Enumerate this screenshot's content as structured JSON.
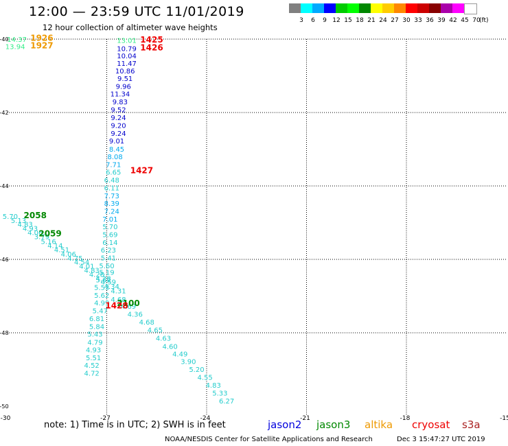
{
  "title": "12:00 — 23:59 UTC 11/01/2019",
  "subtitle": "12 hour collection of altimeter wave heights",
  "scale": {
    "colors": [
      "#808080",
      "#00ffff",
      "#00aaff",
      "#0000ff",
      "#00cc00",
      "#00ff00",
      "#008800",
      "#ffff00",
      "#ffcc00",
      "#ff8800",
      "#ff0000",
      "#cc0000",
      "#880000",
      "#aa00aa",
      "#ff00ff",
      "#ffffff"
    ],
    "labels": [
      "3",
      "6",
      "9",
      "12",
      "15",
      "18",
      "21",
      "24",
      "27",
      "30",
      "33",
      "36",
      "39",
      "42",
      "45",
      "70"
    ],
    "unit": "(ft)"
  },
  "axes": {
    "x_labels": [
      "-30",
      "-27",
      "-24",
      "-21",
      "-18",
      "-15"
    ],
    "y_labels": [
      "-40",
      "-42",
      "-44",
      "-46",
      "-48",
      "-50"
    ]
  },
  "wave_labels": [
    {
      "lon": -29.7,
      "lat": -40.0,
      "t": "14.37",
      "c": "#33ee88"
    },
    {
      "lon": -29.75,
      "lat": -40.2,
      "t": "13.94",
      "c": "#33ee88"
    },
    {
      "lon": -26.4,
      "lat": -40.03,
      "t": "13.01",
      "c": "#33ee88"
    },
    {
      "lon": -26.4,
      "lat": -40.25,
      "t": "10.79",
      "c": "#0000cc"
    },
    {
      "lon": -26.4,
      "lat": -40.45,
      "t": "10.04",
      "c": "#0000cc"
    },
    {
      "lon": -26.4,
      "lat": -40.65,
      "t": "11.47",
      "c": "#0000cc"
    },
    {
      "lon": -26.45,
      "lat": -40.86,
      "t": "10.86",
      "c": "#0000cc"
    },
    {
      "lon": -26.45,
      "lat": -41.07,
      "t": "9.51",
      "c": "#0000cc"
    },
    {
      "lon": -26.5,
      "lat": -41.28,
      "t": "9.96",
      "c": "#0000cc"
    },
    {
      "lon": -26.6,
      "lat": -41.49,
      "t": "11.34",
      "c": "#0000cc"
    },
    {
      "lon": -26.6,
      "lat": -41.7,
      "t": "9.83",
      "c": "#0000cc"
    },
    {
      "lon": -26.65,
      "lat": -41.92,
      "t": "9.52",
      "c": "#0000cc"
    },
    {
      "lon": -26.65,
      "lat": -42.13,
      "t": "9.24",
      "c": "#0000cc"
    },
    {
      "lon": -26.65,
      "lat": -42.35,
      "t": "9.20",
      "c": "#0000cc"
    },
    {
      "lon": -26.65,
      "lat": -42.56,
      "t": "9.24",
      "c": "#0000cc"
    },
    {
      "lon": -26.7,
      "lat": -42.77,
      "t": "9.01",
      "c": "#0000cc"
    },
    {
      "lon": -26.7,
      "lat": -42.99,
      "t": "8.45",
      "c": "#00aaee"
    },
    {
      "lon": -26.75,
      "lat": -43.2,
      "t": "8.08",
      "c": "#00aaee"
    },
    {
      "lon": -26.8,
      "lat": -43.41,
      "t": "7.71",
      "c": "#00aaee"
    },
    {
      "lon": -26.8,
      "lat": -43.62,
      "t": "6.65",
      "c": "#22cccc"
    },
    {
      "lon": -26.85,
      "lat": -43.83,
      "t": "6.48",
      "c": "#22cccc"
    },
    {
      "lon": -26.85,
      "lat": -44.05,
      "t": "6.11",
      "c": "#22cccc"
    },
    {
      "lon": -26.85,
      "lat": -44.26,
      "t": "7.73",
      "c": "#00aaee"
    },
    {
      "lon": -26.85,
      "lat": -44.47,
      "t": "8.39",
      "c": "#00aaee"
    },
    {
      "lon": -26.85,
      "lat": -44.68,
      "t": "7.24",
      "c": "#00aaee"
    },
    {
      "lon": -26.9,
      "lat": -44.9,
      "t": "7.01",
      "c": "#00aaee"
    },
    {
      "lon": -26.9,
      "lat": -45.1,
      "t": "5.70",
      "c": "#22cccc"
    },
    {
      "lon": -26.9,
      "lat": -45.32,
      "t": "5.69",
      "c": "#22cccc"
    },
    {
      "lon": -26.9,
      "lat": -45.53,
      "t": "6.14",
      "c": "#22cccc"
    },
    {
      "lon": -26.95,
      "lat": -45.74,
      "t": "6.23",
      "c": "#22cccc"
    },
    {
      "lon": -26.95,
      "lat": -45.95,
      "t": "5.41",
      "c": "#22cccc"
    },
    {
      "lon": -27.0,
      "lat": -46.17,
      "t": "5.60",
      "c": "#22cccc"
    },
    {
      "lon": -27.0,
      "lat": -46.35,
      "t": "5.19",
      "c": "#22cccc"
    },
    {
      "lon": -27.1,
      "lat": -46.55,
      "t": "5.62",
      "c": "#22cccc"
    },
    {
      "lon": -27.15,
      "lat": -46.76,
      "t": "5.53",
      "c": "#22cccc"
    },
    {
      "lon": -27.15,
      "lat": -46.97,
      "t": "5.62",
      "c": "#22cccc"
    },
    {
      "lon": -27.15,
      "lat": -47.18,
      "t": "4.99",
      "c": "#22cccc"
    },
    {
      "lon": -27.2,
      "lat": -47.39,
      "t": "5.47",
      "c": "#22cccc"
    },
    {
      "lon": -27.3,
      "lat": -47.61,
      "t": "6.81",
      "c": "#22cccc"
    },
    {
      "lon": -27.3,
      "lat": -47.82,
      "t": "5.84",
      "c": "#22cccc"
    },
    {
      "lon": -27.35,
      "lat": -48.03,
      "t": "5.43",
      "c": "#22cccc"
    },
    {
      "lon": -27.35,
      "lat": -48.25,
      "t": "4.79",
      "c": "#22cccc"
    },
    {
      "lon": -27.4,
      "lat": -48.46,
      "t": "4.93",
      "c": "#22cccc"
    },
    {
      "lon": -27.4,
      "lat": -48.67,
      "t": "5.51",
      "c": "#22cccc"
    },
    {
      "lon": -27.45,
      "lat": -48.88,
      "t": "4.52",
      "c": "#22cccc"
    },
    {
      "lon": -27.45,
      "lat": -49.09,
      "t": "4.72",
      "c": "#22cccc"
    },
    {
      "lon": -29.9,
      "lat": -44.82,
      "t": "5.70",
      "c": "#22cccc"
    },
    {
      "lon": -29.65,
      "lat": -44.93,
      "t": "5.13",
      "c": "#22cccc"
    },
    {
      "lon": -29.45,
      "lat": -45.04,
      "t": "4.83",
      "c": "#22cccc"
    },
    {
      "lon": -29.3,
      "lat": -45.15,
      "t": "4.93",
      "c": "#22cccc"
    },
    {
      "lon": -29.15,
      "lat": -45.26,
      "t": "4.06",
      "c": "#22cccc"
    },
    {
      "lon": -28.95,
      "lat": -45.37,
      "t": "3.79",
      "c": "#22cccc"
    },
    {
      "lon": -28.75,
      "lat": -45.5,
      "t": "5.16",
      "c": "#22cccc"
    },
    {
      "lon": -28.55,
      "lat": -45.62,
      "t": "4.14",
      "c": "#22cccc"
    },
    {
      "lon": -28.35,
      "lat": -45.73,
      "t": "4.51",
      "c": "#22cccc"
    },
    {
      "lon": -28.15,
      "lat": -45.85,
      "t": "4.06",
      "c": "#22cccc"
    },
    {
      "lon": -27.95,
      "lat": -45.96,
      "t": "4.75",
      "c": "#22cccc"
    },
    {
      "lon": -27.75,
      "lat": -46.07,
      "t": "4.54",
      "c": "#22cccc"
    },
    {
      "lon": -27.6,
      "lat": -46.18,
      "t": "4.01",
      "c": "#22cccc"
    },
    {
      "lon": -27.45,
      "lat": -46.29,
      "t": "4.83",
      "c": "#22cccc"
    },
    {
      "lon": -27.3,
      "lat": -46.4,
      "t": "4.28",
      "c": "#22cccc"
    },
    {
      "lon": -27.1,
      "lat": -46.51,
      "t": "4.28",
      "c": "#22cccc"
    },
    {
      "lon": -26.95,
      "lat": -46.61,
      "t": "4.59",
      "c": "#22cccc"
    },
    {
      "lon": -26.85,
      "lat": -46.73,
      "t": "4.34",
      "c": "#22cccc"
    },
    {
      "lon": -26.65,
      "lat": -46.85,
      "t": "4.31",
      "c": "#22cccc"
    },
    {
      "lon": -26.65,
      "lat": -47.08,
      "t": "4.68",
      "c": "#22cccc"
    },
    {
      "lon": -26.35,
      "lat": -47.27,
      "t": "4.69",
      "c": "#22cccc"
    },
    {
      "lon": -26.15,
      "lat": -47.49,
      "t": "4.36",
      "c": "#22cccc"
    },
    {
      "lon": -25.8,
      "lat": -47.7,
      "t": "4.68",
      "c": "#22cccc"
    },
    {
      "lon": -25.55,
      "lat": -47.92,
      "t": "4.65",
      "c": "#22cccc"
    },
    {
      "lon": -25.3,
      "lat": -48.14,
      "t": "4.63",
      "c": "#22cccc"
    },
    {
      "lon": -25.1,
      "lat": -48.36,
      "t": "4.60",
      "c": "#22cccc"
    },
    {
      "lon": -24.8,
      "lat": -48.57,
      "t": "4.49",
      "c": "#22cccc"
    },
    {
      "lon": -24.55,
      "lat": -48.78,
      "t": "3.90",
      "c": "#22cccc"
    },
    {
      "lon": -24.3,
      "lat": -48.99,
      "t": "5.20",
      "c": "#22cccc"
    },
    {
      "lon": -24.05,
      "lat": -49.21,
      "t": "4.55",
      "c": "#22cccc"
    },
    {
      "lon": -23.8,
      "lat": -49.42,
      "t": "4.83",
      "c": "#22cccc"
    },
    {
      "lon": -23.6,
      "lat": -49.64,
      "t": "5.33",
      "c": "#22cccc"
    },
    {
      "lon": -23.4,
      "lat": -49.85,
      "t": "6.27",
      "c": "#22cccc"
    }
  ],
  "time_labels": [
    {
      "lon": -28.95,
      "lat": -39.97,
      "t": "1926",
      "c": "#ee9900"
    },
    {
      "lon": -28.95,
      "lat": -40.18,
      "t": "1927",
      "c": "#ee9900"
    },
    {
      "lon": -25.65,
      "lat": -40.02,
      "t": "1425",
      "c": "#ee0000"
    },
    {
      "lon": -25.65,
      "lat": -40.23,
      "t": "1426",
      "c": "#ee0000"
    },
    {
      "lon": -25.95,
      "lat": -43.58,
      "t": "1427",
      "c": "#ee0000"
    },
    {
      "lon": -29.15,
      "lat": -44.8,
      "t": "2058",
      "c": "#008800"
    },
    {
      "lon": -28.7,
      "lat": -45.3,
      "t": "2059",
      "c": "#008800"
    },
    {
      "lon": -26.35,
      "lat": -47.2,
      "t": "2100",
      "c": "#008800"
    },
    {
      "lon": -26.7,
      "lat": -47.26,
      "t": "1428",
      "c": "#ee0000"
    }
  ],
  "note": "note: 1) Time is in UTC; 2) SWH is in feet",
  "satellites": [
    {
      "name": "jason2",
      "color": "#0000dd",
      "x": 390
    },
    {
      "name": "jason3",
      "color": "#008800",
      "x": 461
    },
    {
      "name": "altika",
      "color": "#ee9900",
      "x": 531
    },
    {
      "name": "cryosat",
      "color": "#ee0000",
      "x": 600
    },
    {
      "name": "s3a",
      "color": "#aa2222",
      "x": 673
    }
  ],
  "credit": "NOAA/NESDIS Center for Satellite Applications and Research",
  "timestamp": "Dec  3 15:47:27 UTC 2019"
}
